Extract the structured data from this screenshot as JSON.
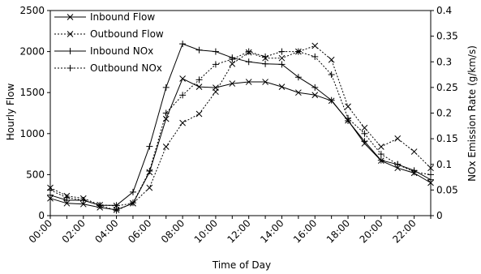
{
  "chart_data": {
    "type": "line",
    "xlabel": "Time of Day",
    "ylabel_left": "Hourly Flow",
    "ylabel_right": "NOx Emission Rate (g/km/s)",
    "x_tick_labels": [
      "00:00",
      "02:00",
      "04:00",
      "06:00",
      "08:00",
      "10:00",
      "12:00",
      "14:00",
      "16:00",
      "18:00",
      "20:00",
      "22:00"
    ],
    "y_left_ticks": [
      "0",
      "500",
      "1000",
      "1500",
      "2000",
      "2500"
    ],
    "y_right_ticks": [
      "0",
      "0.05",
      "0.1",
      "0.15",
      "0.2",
      "0.25",
      "0.3",
      "0.35",
      "0.4"
    ],
    "ylim_left": [
      0,
      2500
    ],
    "ylim_right": [
      0,
      0.4
    ],
    "xlim": [
      0,
      23
    ],
    "grid": false,
    "legend_position": "top-left",
    "x_hours": [
      0,
      1,
      2,
      3,
      4,
      5,
      6,
      7,
      8,
      9,
      10,
      11,
      12,
      13,
      14,
      15,
      16,
      17,
      18,
      19,
      20,
      21,
      22,
      23
    ],
    "series": [
      {
        "name": "Inbound Flow",
        "axis": "left",
        "line_style": "solid",
        "marker": "x",
        "values": [
          210,
          150,
          140,
          100,
          70,
          150,
          530,
          1180,
          1670,
          1570,
          1560,
          1610,
          1630,
          1630,
          1570,
          1500,
          1470,
          1400,
          1160,
          880,
          670,
          580,
          520,
          400
        ]
      },
      {
        "name": "Outbound Flow",
        "axis": "left",
        "line_style": "dotted",
        "marker": "x",
        "values": [
          340,
          240,
          210,
          130,
          120,
          150,
          340,
          840,
          1130,
          1240,
          1510,
          1850,
          1990,
          1920,
          1920,
          2000,
          2070,
          1900,
          1330,
          1070,
          840,
          940,
          780,
          580
        ]
      },
      {
        "name": "Inbound NOx",
        "axis": "right",
        "line_style": "solid",
        "marker": "+",
        "values": [
          0.04,
          0.03,
          0.03,
          0.02,
          0.02,
          0.046,
          0.135,
          0.25,
          0.335,
          0.323,
          0.32,
          0.308,
          0.3,
          0.296,
          0.295,
          0.27,
          0.25,
          0.225,
          0.185,
          0.145,
          0.108,
          0.1,
          0.088,
          0.07
        ]
      },
      {
        "name": "Outbound NOx",
        "axis": "right",
        "line_style": "dotted",
        "marker": "+",
        "values": [
          0.05,
          0.035,
          0.03,
          0.02,
          0.01,
          0.025,
          0.087,
          0.2,
          0.235,
          0.265,
          0.295,
          0.305,
          0.32,
          0.31,
          0.32,
          0.32,
          0.31,
          0.275,
          0.19,
          0.16,
          0.12,
          0.1,
          0.085,
          0.08
        ]
      }
    ]
  }
}
